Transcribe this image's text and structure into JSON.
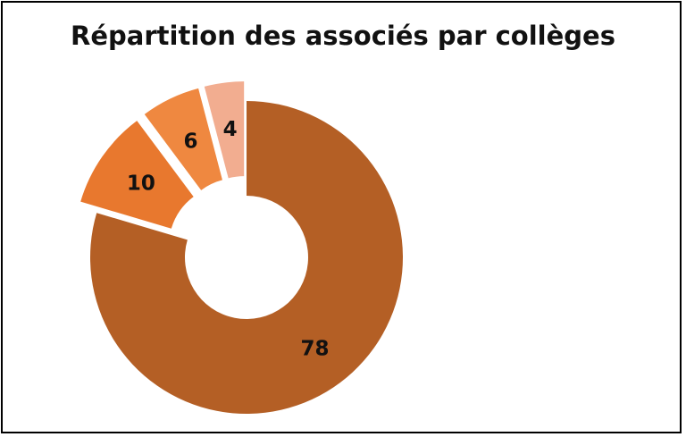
{
  "chart_data": {
    "type": "pie",
    "title": "Répartition des associés par collèges",
    "categories": [
      "",
      "",
      "",
      ""
    ],
    "values": [
      78,
      10,
      6,
      4
    ],
    "value_labels": [
      "78",
      "10",
      "6",
      "4"
    ],
    "colors": [
      "#b45f25",
      "#e8782e",
      "#ef8840",
      "#f2ad90"
    ],
    "donut": true,
    "exploded": [
      false,
      true,
      true,
      true
    ],
    "legend": "none"
  }
}
